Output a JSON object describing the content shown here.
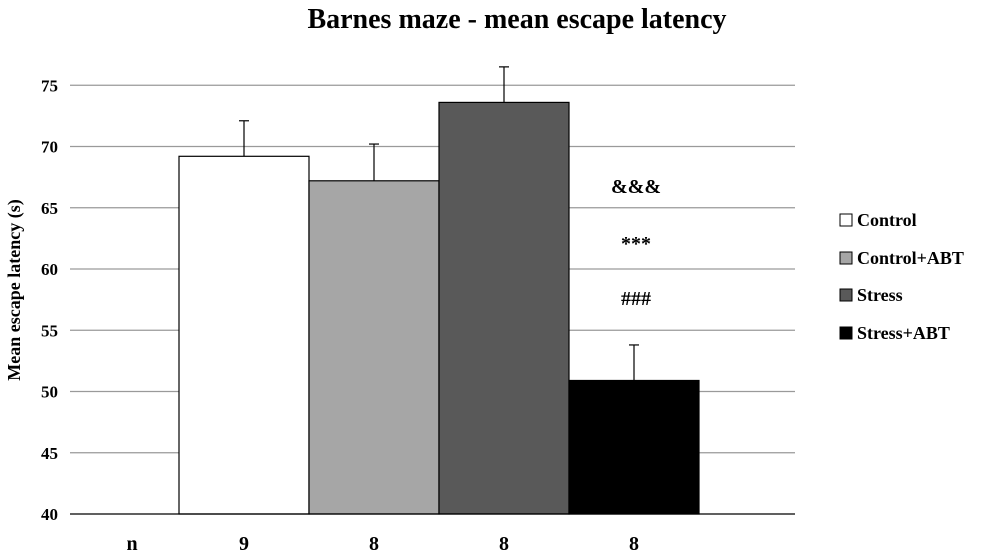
{
  "chart_data": {
    "type": "bar",
    "title": "Barnes maze - mean escape latency",
    "ylabel": "Mean escape latency (s)",
    "xlabel": "",
    "ylim": [
      40,
      77
    ],
    "yticks": [
      40,
      45,
      50,
      55,
      60,
      65,
      70,
      75
    ],
    "grid": true,
    "legend_position": "right",
    "n_label": "n",
    "series": [
      {
        "name": "Control",
        "value": 69.2,
        "error": 2.9,
        "n": "9",
        "color": "#ffffff"
      },
      {
        "name": "Control+ABT",
        "value": 67.2,
        "error": 3.0,
        "n": "8",
        "color": "#a6a6a6"
      },
      {
        "name": "Stress",
        "value": 73.6,
        "error": 2.9,
        "n": "8",
        "color": "#595959"
      },
      {
        "name": "Stress+ABT",
        "value": 50.9,
        "error": 2.9,
        "n": "8",
        "color": "#000000"
      }
    ],
    "annotations": [
      "&&&",
      "***",
      "###"
    ]
  }
}
